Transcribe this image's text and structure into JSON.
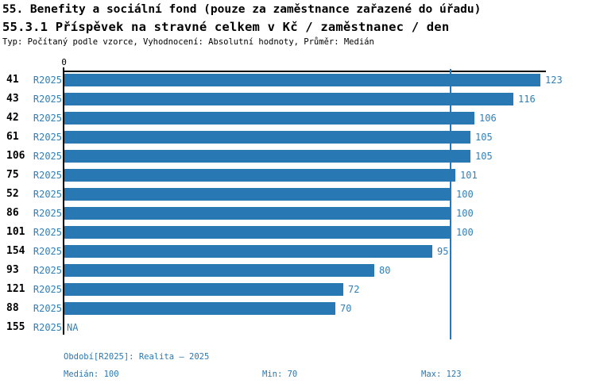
{
  "header": {
    "title_line1": "55. Benefity a sociální fond (pouze za zaměstnance zařazené do úřadu)",
    "title_line2": "55.3.1 Příspěvek na stravné celkem v Kč / zaměstnanec / den",
    "subtitle": "Typ: Počítaný podle vzorce, Vyhodnocení: Absolutní hodnoty, Průměr: Medián"
  },
  "axis": {
    "zero_tick_label": "0"
  },
  "chart_data": {
    "type": "bar",
    "orientation": "horizontal",
    "title": "55.3.1 Příspěvek na stravné celkem v Kč / zaměstnanec / den",
    "categories": [
      "41",
      "43",
      "42",
      "61",
      "106",
      "75",
      "52",
      "86",
      "101",
      "154",
      "93",
      "121",
      "88",
      "155"
    ],
    "period_label": "R2025",
    "values": [
      123,
      116,
      106,
      105,
      105,
      101,
      100,
      100,
      100,
      95,
      80,
      72,
      70,
      null
    ],
    "value_labels": [
      "123",
      "116",
      "106",
      "105",
      "105",
      "101",
      "100",
      "100",
      "100",
      "95",
      "80",
      "72",
      "70",
      "NA"
    ],
    "xlim": [
      0,
      125
    ],
    "reference_line": {
      "value": 100,
      "meaning": "median"
    },
    "bar_color": "#2878b4",
    "grid": false,
    "legend": false
  },
  "footer": {
    "period": "Období[R2025]: Realita – 2025",
    "median": "Medián: 100",
    "min": "Min: 70",
    "max": "Max: 123"
  },
  "colors": {
    "bar": "#2878b4",
    "link_text": "#2f7fb8",
    "axis": "#000000",
    "background": "#ffffff"
  }
}
